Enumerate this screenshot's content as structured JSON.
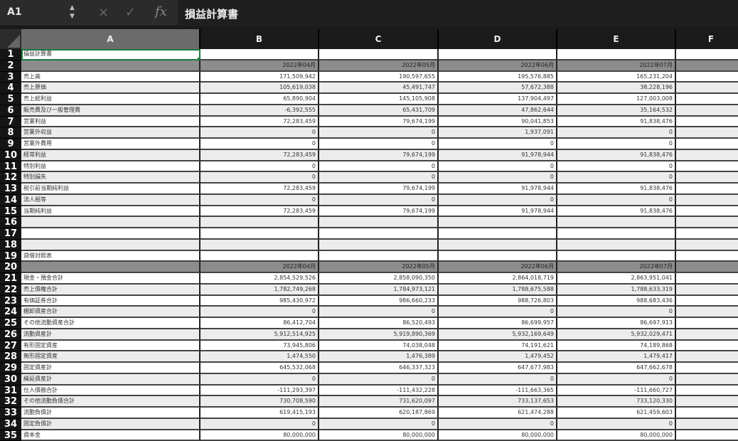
{
  "formula_bar": {
    "name_box": "A1",
    "cancel_icon": "×",
    "confirm_icon": "✓",
    "fx_label": "fx",
    "content": "損益計算書"
  },
  "columns": [
    "A",
    "B",
    "C",
    "D",
    "E",
    "F"
  ],
  "selected_cell": "A1",
  "rows": [
    {
      "n": "1",
      "label": "損益計算書",
      "values": [
        "",
        "",
        "",
        ""
      ]
    },
    {
      "n": "2",
      "label": "",
      "values": [
        "2022年04月",
        "2022年05月",
        "2022年06月",
        "2022年07月"
      ],
      "hdr": true
    },
    {
      "n": "3",
      "label": "売上高",
      "values": [
        "171,509,942",
        "190,597,655",
        "195,576,885",
        "165,231,204"
      ]
    },
    {
      "n": "4",
      "label": "売上原価",
      "values": [
        "105,619,038",
        "45,491,747",
        "57,672,388",
        "38,228,196"
      ]
    },
    {
      "n": "5",
      "label": "売上総利益",
      "values": [
        "65,890,904",
        "145,105,908",
        "137,904,497",
        "127,003,008"
      ]
    },
    {
      "n": "6",
      "label": "販売費及び一般管理費",
      "values": [
        "-6,392,555",
        "65,431,709",
        "47,862,644",
        "35,164,532"
      ]
    },
    {
      "n": "7",
      "label": "営業利益",
      "values": [
        "72,283,459",
        "79,674,199",
        "90,041,853",
        "91,838,476"
      ]
    },
    {
      "n": "8",
      "label": "営業外収益",
      "values": [
        "0",
        "0",
        "1,937,091",
        "0"
      ]
    },
    {
      "n": "9",
      "label": "営業外費用",
      "values": [
        "0",
        "0",
        "0",
        "0"
      ]
    },
    {
      "n": "10",
      "label": "経常利益",
      "values": [
        "72,283,459",
        "79,674,199",
        "91,978,944",
        "91,838,476"
      ]
    },
    {
      "n": "11",
      "label": "特別利益",
      "values": [
        "0",
        "0",
        "0",
        "0"
      ]
    },
    {
      "n": "12",
      "label": "特別損失",
      "values": [
        "0",
        "0",
        "0",
        "0"
      ]
    },
    {
      "n": "13",
      "label": "税引前当期純利益",
      "values": [
        "72,283,459",
        "79,674,199",
        "91,978,944",
        "91,838,476"
      ]
    },
    {
      "n": "14",
      "label": "法人税等",
      "values": [
        "0",
        "0",
        "0",
        "0"
      ]
    },
    {
      "n": "15",
      "label": "当期純利益",
      "values": [
        "72,283,459",
        "79,674,199",
        "91,978,944",
        "91,838,476"
      ]
    },
    {
      "n": "16",
      "label": "",
      "values": [
        "",
        "",
        "",
        ""
      ]
    },
    {
      "n": "17",
      "label": "",
      "values": [
        "",
        "",
        "",
        ""
      ]
    },
    {
      "n": "18",
      "label": "",
      "values": [
        "",
        "",
        "",
        ""
      ]
    },
    {
      "n": "19",
      "label": "貸借対照表",
      "values": [
        "",
        "",
        "",
        ""
      ]
    },
    {
      "n": "20",
      "label": "",
      "values": [
        "2022年04月",
        "2022年05月",
        "2022年06月",
        "2022年07月"
      ],
      "hdr": true
    },
    {
      "n": "21",
      "label": "現金・預金合計",
      "values": [
        "2,854,529,526",
        "2,858,090,350",
        "2,864,018,719",
        "2,863,951,041"
      ]
    },
    {
      "n": "22",
      "label": "売上債権合計",
      "values": [
        "1,782,749,268",
        "1,784,973,121",
        "1,788,675,588",
        "1,788,633,319"
      ]
    },
    {
      "n": "23",
      "label": "有価証券合計",
      "values": [
        "985,430,972",
        "986,660,233",
        "988,726,803",
        "988,683,436"
      ]
    },
    {
      "n": "24",
      "label": "棚卸資産合計",
      "values": [
        "0",
        "0",
        "0",
        "0"
      ]
    },
    {
      "n": "25",
      "label": "その他流動資産合計",
      "values": [
        "86,412,704",
        "86,520,493",
        "86,699,957",
        "86,697,913"
      ]
    },
    {
      "n": "26",
      "label": "流動資産計",
      "values": [
        "5,912,514,925",
        "5,919,890,369",
        "5,932,169,649",
        "5,932,029,471"
      ]
    },
    {
      "n": "27",
      "label": "有形固定資産",
      "values": [
        "73,945,806",
        "74,038,048",
        "74,191,621",
        "74,189,868"
      ]
    },
    {
      "n": "28",
      "label": "無形固定資産",
      "values": [
        "1,474,550",
        "1,476,389",
        "1,479,452",
        "1,479,417"
      ]
    },
    {
      "n": "29",
      "label": "固定資産計",
      "values": [
        "645,532,068",
        "646,337,323",
        "647,677,983",
        "647,662,678"
      ]
    },
    {
      "n": "30",
      "label": "繰延資産計",
      "values": [
        "0",
        "0",
        "0",
        "0"
      ]
    },
    {
      "n": "31",
      "label": "仕入債務合計",
      "values": [
        "-111,293,397",
        "-111,432,228",
        "-111,663,365",
        "-111,660,727"
      ]
    },
    {
      "n": "32",
      "label": "その他流動負債合計",
      "values": [
        "730,708,590",
        "731,620,097",
        "733,137,653",
        "733,120,330"
      ]
    },
    {
      "n": "33",
      "label": "流動負債計",
      "values": [
        "619,415,193",
        "620,187,869",
        "621,474,288",
        "621,459,603"
      ]
    },
    {
      "n": "34",
      "label": "固定負債計",
      "values": [
        "0",
        "0",
        "0",
        "0"
      ]
    },
    {
      "n": "35",
      "label": "資本金",
      "values": [
        "80,000,000",
        "80,000,000",
        "80,000,000",
        "80,000,000"
      ]
    }
  ]
}
